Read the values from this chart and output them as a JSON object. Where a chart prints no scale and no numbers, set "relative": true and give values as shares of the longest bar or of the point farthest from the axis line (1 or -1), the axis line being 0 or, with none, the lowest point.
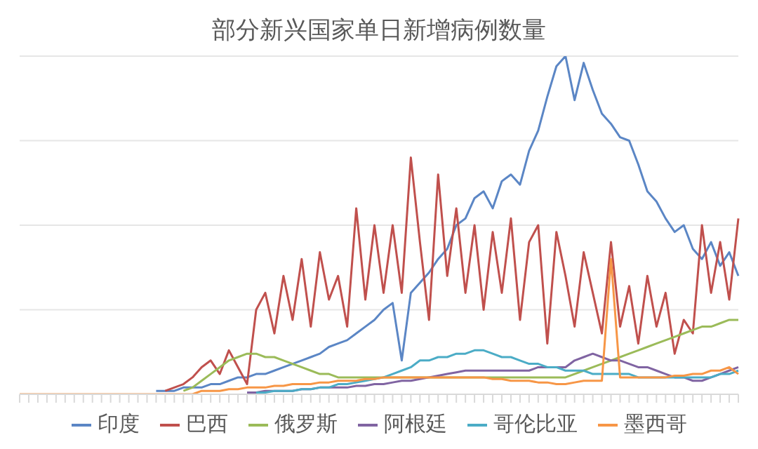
{
  "chart_data": {
    "type": "line",
    "title": "部分新兴国家单日新增病例数量",
    "relative": true,
    "grid": "y",
    "legend": "bottom",
    "marker": "none",
    "categories": [
      null,
      null,
      null,
      null,
      null,
      null,
      null,
      null,
      null,
      null,
      null,
      null,
      null,
      null,
      null,
      null,
      null,
      null,
      null,
      null,
      null,
      null,
      null,
      null,
      null,
      null,
      null,
      null,
      null,
      null,
      null,
      null,
      null,
      null,
      null,
      null,
      null,
      null,
      null,
      null,
      null,
      null,
      null,
      null,
      null,
      null,
      null,
      null,
      null,
      null,
      null,
      null,
      null,
      null,
      null,
      null,
      null,
      null,
      null,
      null,
      null,
      null,
      null,
      null,
      null,
      null,
      null,
      null,
      null,
      null,
      null,
      null,
      null,
      null,
      null,
      null,
      null,
      null,
      null,
      null
    ],
    "series": [
      {
        "name": "印度",
        "color": "#5b86c5",
        "values": [
          null,
          null,
          null,
          null,
          null,
          null,
          null,
          null,
          null,
          null,
          null,
          null,
          null,
          null,
          null,
          0.01,
          0.01,
          0.01,
          0.02,
          0.02,
          0.02,
          0.03,
          0.03,
          0.04,
          0.05,
          0.05,
          0.06,
          0.06,
          0.07,
          0.08,
          0.09,
          0.1,
          0.11,
          0.12,
          0.14,
          0.15,
          0.16,
          0.18,
          0.2,
          0.22,
          0.25,
          0.27,
          0.1,
          0.3,
          0.33,
          0.36,
          0.4,
          0.43,
          0.5,
          0.52,
          0.58,
          0.6,
          0.55,
          0.63,
          0.65,
          0.62,
          0.72,
          0.78,
          0.88,
          0.97,
          1,
          0.87,
          0.98,
          0.9,
          0.83,
          0.8,
          0.76,
          0.75,
          0.68,
          0.6,
          0.57,
          0.52,
          0.48,
          0.5,
          0.43,
          0.4,
          0.45,
          0.38,
          0.42,
          0.35
        ]
      },
      {
        "name": "巴西",
        "color": "#c0504d",
        "values": [
          null,
          null,
          null,
          null,
          null,
          null,
          null,
          null,
          null,
          null,
          null,
          null,
          null,
          null,
          null,
          null,
          0.01,
          0.02,
          0.03,
          0.05,
          0.08,
          0.1,
          0.06,
          0.13,
          0.08,
          0.03,
          0.25,
          0.3,
          0.18,
          0.35,
          0.22,
          0.4,
          0.2,
          0.42,
          0.28,
          0.35,
          0.2,
          0.55,
          0.28,
          0.5,
          0.3,
          0.5,
          0.3,
          0.7,
          0.45,
          0.22,
          0.65,
          0.35,
          0.55,
          0.3,
          0.5,
          0.25,
          0.48,
          0.3,
          0.52,
          0.22,
          0.45,
          0.5,
          0.15,
          0.48,
          0.35,
          0.2,
          0.42,
          0.3,
          0.18,
          0.45,
          0.2,
          0.32,
          0.15,
          0.35,
          0.2,
          0.3,
          0.12,
          0.22,
          0.18,
          0.5,
          0.3,
          0.45,
          0.28,
          0.52
        ]
      },
      {
        "name": "俄罗斯",
        "color": "#9bbb59",
        "values": [
          null,
          null,
          null,
          null,
          null,
          null,
          null,
          null,
          null,
          null,
          null,
          null,
          null,
          null,
          null,
          null,
          null,
          null,
          0.01,
          0.02,
          0.04,
          0.06,
          0.08,
          0.1,
          0.11,
          0.12,
          0.12,
          0.11,
          0.11,
          0.1,
          0.09,
          0.08,
          0.07,
          0.06,
          0.06,
          0.05,
          0.05,
          0.05,
          0.05,
          0.05,
          0.05,
          0.05,
          0.05,
          0.05,
          0.05,
          0.05,
          0.05,
          0.05,
          0.05,
          0.05,
          0.05,
          0.05,
          0.05,
          0.05,
          0.05,
          0.05,
          0.05,
          0.05,
          0.05,
          0.05,
          0.05,
          0.06,
          0.07,
          0.08,
          0.09,
          0.1,
          0.11,
          0.12,
          0.13,
          0.14,
          0.15,
          0.16,
          0.17,
          0.18,
          0.19,
          0.2,
          0.2,
          0.21,
          0.22,
          0.22
        ]
      },
      {
        "name": "阿根廷",
        "color": "#8064a2",
        "values": [
          null,
          null,
          null,
          null,
          null,
          null,
          null,
          null,
          null,
          null,
          null,
          null,
          null,
          null,
          null,
          null,
          null,
          null,
          null,
          null,
          null,
          null,
          null,
          null,
          null,
          0.005,
          0.005,
          0.01,
          0.01,
          0.01,
          0.01,
          0.015,
          0.015,
          0.02,
          0.02,
          0.02,
          0.02,
          0.025,
          0.025,
          0.03,
          0.03,
          0.035,
          0.04,
          0.04,
          0.045,
          0.05,
          0.055,
          0.06,
          0.065,
          0.07,
          0.07,
          0.07,
          0.07,
          0.07,
          0.07,
          0.07,
          0.07,
          0.08,
          0.08,
          0.08,
          0.08,
          0.1,
          0.11,
          0.12,
          0.11,
          0.1,
          0.1,
          0.09,
          0.08,
          0.08,
          0.07,
          0.06,
          0.05,
          0.05,
          0.04,
          0.04,
          0.05,
          0.06,
          0.07,
          0.08
        ]
      },
      {
        "name": "哥伦比亚",
        "color": "#4bacc6",
        "values": [
          null,
          null,
          null,
          null,
          null,
          null,
          null,
          null,
          null,
          null,
          null,
          null,
          null,
          null,
          null,
          null,
          null,
          null,
          null,
          null,
          null,
          null,
          null,
          null,
          null,
          null,
          0.005,
          0.005,
          0.01,
          0.01,
          0.01,
          0.015,
          0.015,
          0.02,
          0.02,
          0.03,
          0.03,
          0.035,
          0.04,
          0.045,
          0.05,
          0.06,
          0.07,
          0.08,
          0.1,
          0.1,
          0.11,
          0.11,
          0.12,
          0.12,
          0.13,
          0.13,
          0.12,
          0.11,
          0.11,
          0.1,
          0.09,
          0.09,
          0.08,
          0.08,
          0.07,
          0.07,
          0.07,
          0.06,
          0.06,
          0.06,
          0.06,
          0.06,
          0.05,
          0.05,
          0.05,
          0.05,
          0.05,
          0.05,
          0.05,
          0.05,
          0.05,
          0.06,
          0.06,
          0.07
        ]
      },
      {
        "name": "墨西哥",
        "color": "#f79646",
        "values": [
          0,
          0,
          0,
          0,
          0,
          0,
          0,
          0,
          0,
          0,
          0,
          0,
          0,
          0,
          0,
          0,
          0,
          0,
          0,
          0,
          0.01,
          0.01,
          0.01,
          0.015,
          0.015,
          0.02,
          0.02,
          0.02,
          0.025,
          0.025,
          0.03,
          0.03,
          0.03,
          0.035,
          0.035,
          0.04,
          0.04,
          0.04,
          0.045,
          0.045,
          0.05,
          0.05,
          0.05,
          0.05,
          0.05,
          0.05,
          0.05,
          0.05,
          0.05,
          0.05,
          0.05,
          0.05,
          0.045,
          0.045,
          0.04,
          0.04,
          0.04,
          0.035,
          0.035,
          0.03,
          0.03,
          0.035,
          0.04,
          0.04,
          0.04,
          0.4,
          0.05,
          0.05,
          0.05,
          0.05,
          0.05,
          0.05,
          0.055,
          0.055,
          0.06,
          0.06,
          0.07,
          0.07,
          0.08,
          0.06
        ]
      }
    ]
  }
}
